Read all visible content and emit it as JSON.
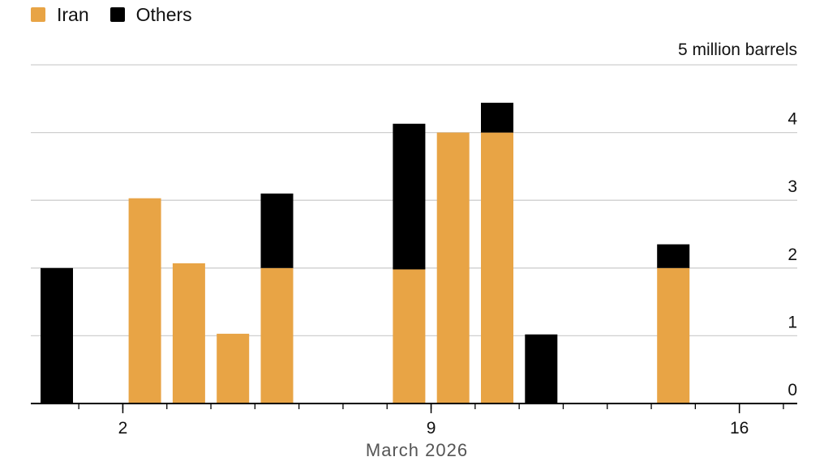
{
  "chart_data": {
    "type": "bar",
    "stacked": true,
    "unit_label": "5 million barrels",
    "xlabel": "March 2026",
    "x": [
      1,
      2,
      3,
      4,
      5,
      6,
      7,
      8,
      9,
      10,
      11,
      12,
      13,
      14,
      15,
      16,
      17
    ],
    "x_tick_labels": [
      {
        "x": 2,
        "label": "2"
      },
      {
        "x": 9,
        "label": "9"
      },
      {
        "x": 16,
        "label": "16"
      }
    ],
    "y_tick_labels": [
      {
        "value": 0,
        "label": "0"
      },
      {
        "value": 1,
        "label": "1"
      },
      {
        "value": 2,
        "label": "2"
      },
      {
        "value": 3,
        "label": "3"
      },
      {
        "value": 4,
        "label": "4"
      }
    ],
    "ylim": [
      0,
      5
    ],
    "grid": true,
    "legend_position": "top-left",
    "series": [
      {
        "name": "Iran",
        "color": "#E8A445",
        "values": [
          0,
          0,
          3.03,
          2.07,
          1.03,
          2.0,
          0,
          0,
          1.98,
          4.0,
          4.0,
          0,
          0,
          0,
          2.0,
          0,
          0
        ]
      },
      {
        "name": "Others",
        "color": "#000000",
        "values": [
          2.0,
          0,
          0,
          0,
          0,
          1.1,
          0,
          0,
          2.15,
          0,
          0.44,
          1.02,
          0,
          0,
          0.35,
          0,
          0
        ]
      }
    ]
  }
}
